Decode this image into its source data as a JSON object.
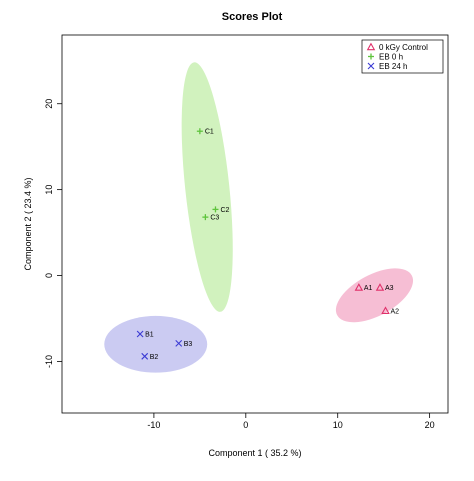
{
  "chart_data": {
    "type": "scatter",
    "title": "Scores Plot",
    "xlabel": "Component 1 ( 35.2 %)",
    "ylabel": "Component 2 ( 23.4 %)",
    "xlim": [
      -20,
      22
    ],
    "ylim": [
      -16,
      28
    ],
    "xticks": [
      -10,
      0,
      10,
      20
    ],
    "yticks": [
      -10,
      0,
      10,
      20
    ],
    "grid": false,
    "legend_position": "top-right",
    "series": [
      {
        "name": "0 kGy Control",
        "marker": "triangle",
        "color": "#e0306a",
        "ellipse_color": "#f5b3cc",
        "points": [
          {
            "label": "A1",
            "x": 12.3,
            "y": -1.4
          },
          {
            "label": "A3",
            "x": 14.6,
            "y": -1.4
          },
          {
            "label": "A2",
            "x": 15.2,
            "y": -4.1
          }
        ],
        "ellipse": {
          "cx": 14.0,
          "cy": -2.3,
          "rx": 4.6,
          "ry": 2.4,
          "angle": -28
        }
      },
      {
        "name": "EB 0 h",
        "marker": "plus",
        "color": "#5ec43c",
        "ellipse_color": "#c9f0b3",
        "points": [
          {
            "label": "C1",
            "x": -5.0,
            "y": 16.8
          },
          {
            "label": "C2",
            "x": -3.3,
            "y": 7.7
          },
          {
            "label": "C3",
            "x": -4.4,
            "y": 6.8
          }
        ],
        "ellipse": {
          "cx": -4.2,
          "cy": 10.3,
          "rx": 2.4,
          "ry": 14.6,
          "angle": -6
        }
      },
      {
        "name": "EB 24 h",
        "marker": "cross",
        "color": "#3b3bd4",
        "ellipse_color": "#c2c2f0",
        "points": [
          {
            "label": "B1",
            "x": -11.5,
            "y": -6.8
          },
          {
            "label": "B3",
            "x": -7.3,
            "y": -7.9
          },
          {
            "label": "B2",
            "x": -11.0,
            "y": -9.4
          }
        ],
        "ellipse": {
          "cx": -9.8,
          "cy": -8.0,
          "rx": 5.6,
          "ry": 3.3,
          "angle": 0
        }
      }
    ]
  }
}
